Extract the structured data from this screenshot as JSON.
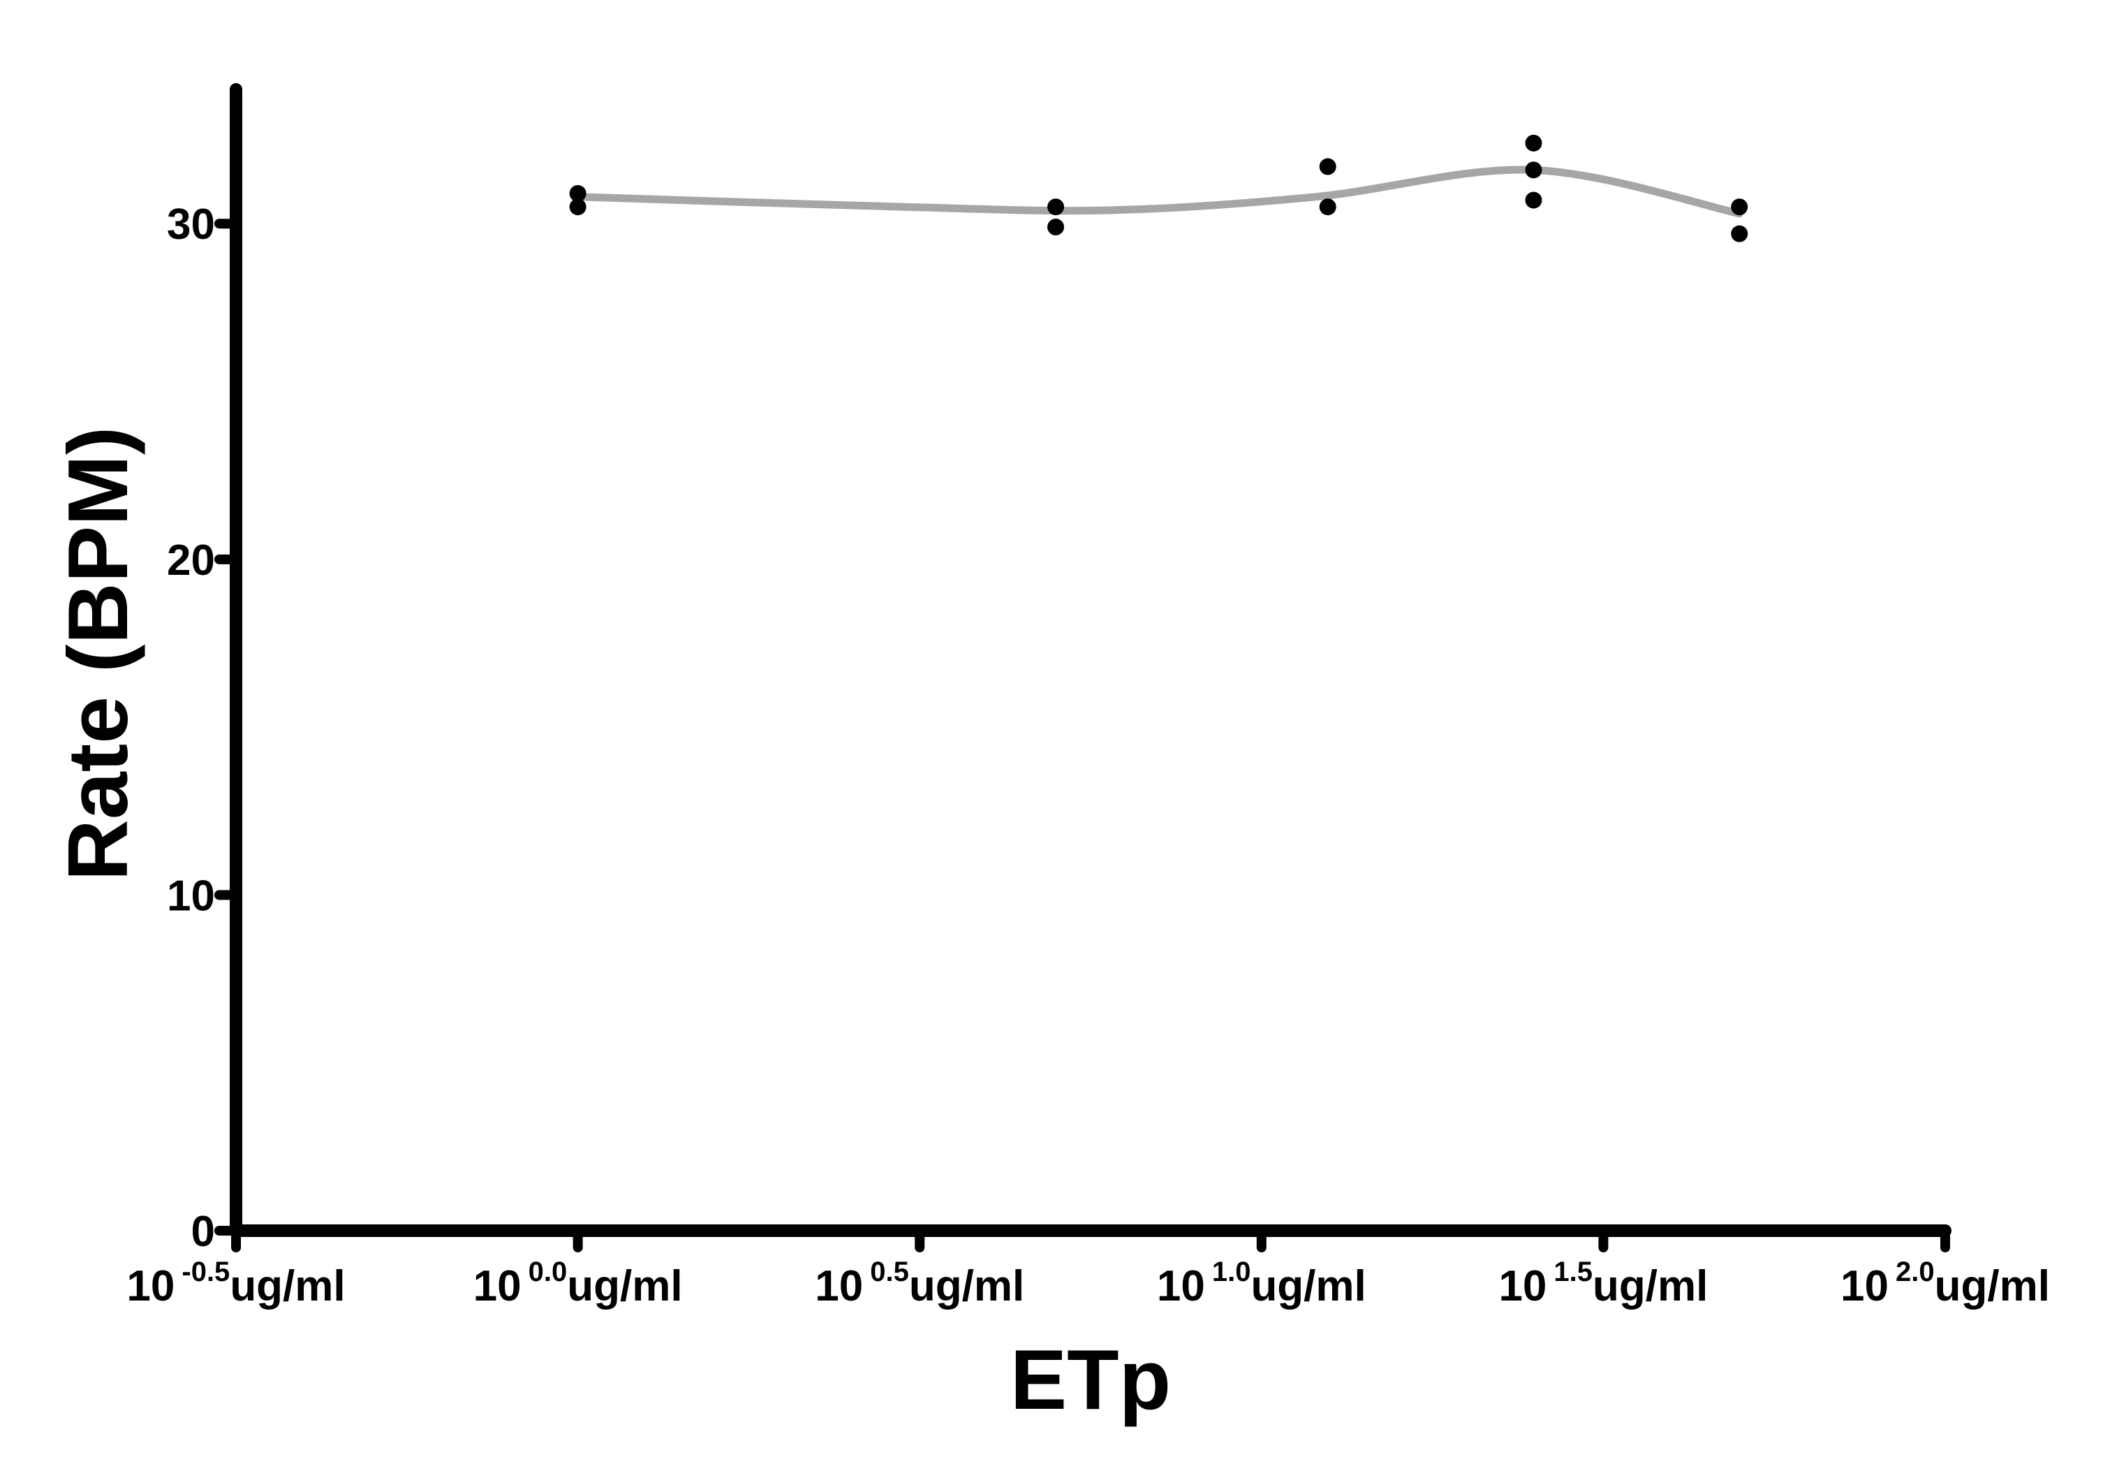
{
  "chart_data": {
    "type": "scatter",
    "title": "",
    "xlabel": "ETp",
    "ylabel": "Rate (BPM)",
    "x_scale": "log10",
    "x_unit": "ug/ml",
    "xlim": [
      0.3162,
      100
    ],
    "ylim": [
      0,
      34
    ],
    "x_ticks": [
      {
        "base": "10",
        "exp": "-0.5",
        "unit": "ug/ml"
      },
      {
        "base": "10",
        "exp": "0.0",
        "unit": "ug/ml"
      },
      {
        "base": "10",
        "exp": "0.5",
        "unit": "ug/ml"
      },
      {
        "base": "10",
        "exp": "1.0",
        "unit": "ug/ml"
      },
      {
        "base": "10",
        "exp": "1.5",
        "unit": "ug/ml"
      },
      {
        "base": "10",
        "exp": "2.0",
        "unit": "ug/ml"
      }
    ],
    "y_ticks": [
      0,
      10,
      20,
      30
    ],
    "grid": false,
    "legend": "none",
    "series": [
      {
        "points": [
          {
            "x": 1.0,
            "y": 30.9
          },
          {
            "x": 1.0,
            "y": 30.5
          },
          {
            "x": 5.0,
            "y": 30.5
          },
          {
            "x": 5.0,
            "y": 29.9
          },
          {
            "x": 12.5,
            "y": 31.7
          },
          {
            "x": 12.5,
            "y": 30.5
          },
          {
            "x": 25.0,
            "y": 32.4
          },
          {
            "x": 25.0,
            "y": 31.6
          },
          {
            "x": 25.0,
            "y": 30.7
          },
          {
            "x": 50.0,
            "y": 30.5
          },
          {
            "x": 50.0,
            "y": 29.7
          }
        ],
        "fit": {
          "x": [
            1.0,
            3.0,
            6.0,
            12.0,
            25.0,
            50.0
          ],
          "y": [
            30.8,
            30.5,
            30.4,
            30.8,
            31.6,
            30.3
          ]
        },
        "point_color": "#000000",
        "fit_color": "#a6a6a8"
      }
    ]
  }
}
